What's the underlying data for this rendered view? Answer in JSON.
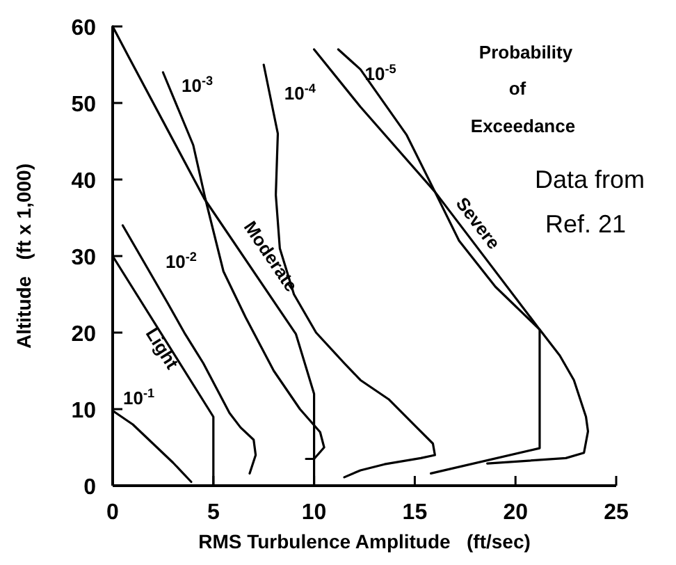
{
  "chart_data": {
    "type": "line",
    "xlabel": "RMS Turbulence Amplitude   (ft/sec)",
    "ylabel": "Altitude   (ft x 1,000)",
    "xlim": [
      0,
      25
    ],
    "ylim": [
      0,
      60
    ],
    "xticks": [
      0,
      5,
      10,
      15,
      20,
      25
    ],
    "yticks": [
      0,
      10,
      20,
      30,
      40,
      50,
      60
    ],
    "grid": false,
    "marker": "none",
    "line_style": "solid",
    "annotations": [
      "Probability",
      "of",
      "Exceedance",
      "Data from",
      "Ref. 21"
    ],
    "series": [
      {
        "name": "10$^{-1}$",
        "color": "#000000",
        "x": [
          0,
          1,
          2,
          3,
          3.9
        ],
        "values": [
          9.8,
          8,
          5.5,
          3,
          0.5
        ]
      },
      {
        "name": "10$^{-2}$",
        "color": "#000000",
        "x": [
          0.5,
          2.7,
          3.6,
          4.5,
          5.2,
          5.8,
          6.35,
          7,
          7.1,
          6.8
        ],
        "values": [
          34,
          24,
          19.8,
          16,
          12.5,
          9.5,
          7.6,
          6,
          4,
          1.6
        ]
      },
      {
        "name": "10$^{-3}$",
        "color": "#000000",
        "x": [
          2.5,
          4,
          4.6,
          5.5,
          6.6,
          8,
          9.3,
          10.3,
          10.5,
          10,
          9.6
        ],
        "values": [
          54,
          44.5,
          37.5,
          28,
          22,
          15,
          10,
          7,
          5,
          3.5,
          3.5
        ]
      },
      {
        "name": "10$^{-4}$",
        "color": "#000000",
        "x": [
          7.5,
          8.2,
          8.1,
          8.3,
          9,
          10.1,
          11.5,
          12.3,
          13.7,
          15.1,
          15.9,
          16,
          15.3,
          13.5,
          12.3,
          11.5
        ],
        "values": [
          55,
          46,
          38,
          31,
          25,
          20,
          16,
          13.8,
          11.3,
          7.6,
          5.5,
          4,
          3.6,
          2.8,
          2,
          1.1
        ]
      },
      {
        "name": "10$^{-5}$",
        "color": "#000000",
        "x": [
          11.2,
          12.3,
          14.6,
          16,
          17.2,
          19,
          21.2,
          22.2,
          22.9,
          23.5,
          23.6,
          23.4,
          22.5,
          18.6
        ],
        "values": [
          57,
          54.4,
          45.8,
          38.4,
          32,
          26,
          20.4,
          17,
          13.8,
          9,
          7.1,
          4.3,
          3.6,
          2.9
        ]
      },
      {
        "name": "Light",
        "color": "#000000",
        "x": [
          0,
          5,
          5
        ],
        "values": [
          30,
          9,
          0
        ]
      },
      {
        "name": "Moderate",
        "color": "#000000",
        "x": [
          0,
          0.8,
          4.55,
          9.1,
          10,
          10
        ],
        "values": [
          60,
          56,
          37.5,
          19.8,
          12,
          0
        ]
      },
      {
        "name": "Severe",
        "color": "#000000",
        "x": [
          10,
          12.3,
          16,
          21.2,
          21.2,
          15.8
        ],
        "values": [
          57,
          49.5,
          38.4,
          20.4,
          4.9,
          1.6
        ]
      }
    ]
  }
}
